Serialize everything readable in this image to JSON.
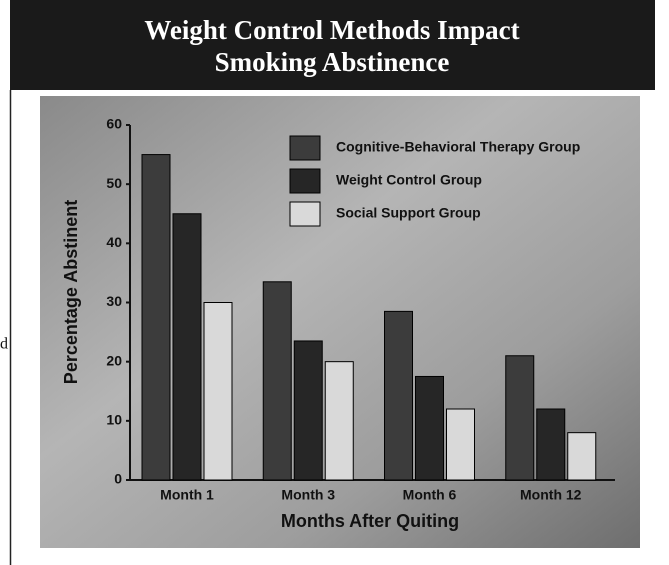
{
  "side_fragment": "d",
  "chart_data": {
    "type": "bar",
    "title": "Weight Control Methods Impact",
    "subtitle": "Smoking Abstinence",
    "x_label": "Months After Quiting",
    "y_label": "Percentage Abstinent",
    "categories": [
      "Month 1",
      "Month 3",
      "Month 6",
      "Month 12"
    ],
    "series": [
      {
        "name": "Cognitive-Behavioral Therapy Group",
        "color": "#3c3c3c",
        "values": [
          55,
          33.5,
          28.5,
          21
        ]
      },
      {
        "name": "Weight Control Group",
        "color": "#262626",
        "values": [
          45,
          23.5,
          17.5,
          12
        ]
      },
      {
        "name": "Social Support Group",
        "color": "#d9d9d9",
        "values": [
          30,
          20,
          12,
          8
        ]
      }
    ],
    "ylim": [
      0,
      60
    ],
    "yticks": [
      0,
      10,
      20,
      30,
      40,
      50,
      60
    ],
    "grid": false,
    "legend": "top-right"
  }
}
